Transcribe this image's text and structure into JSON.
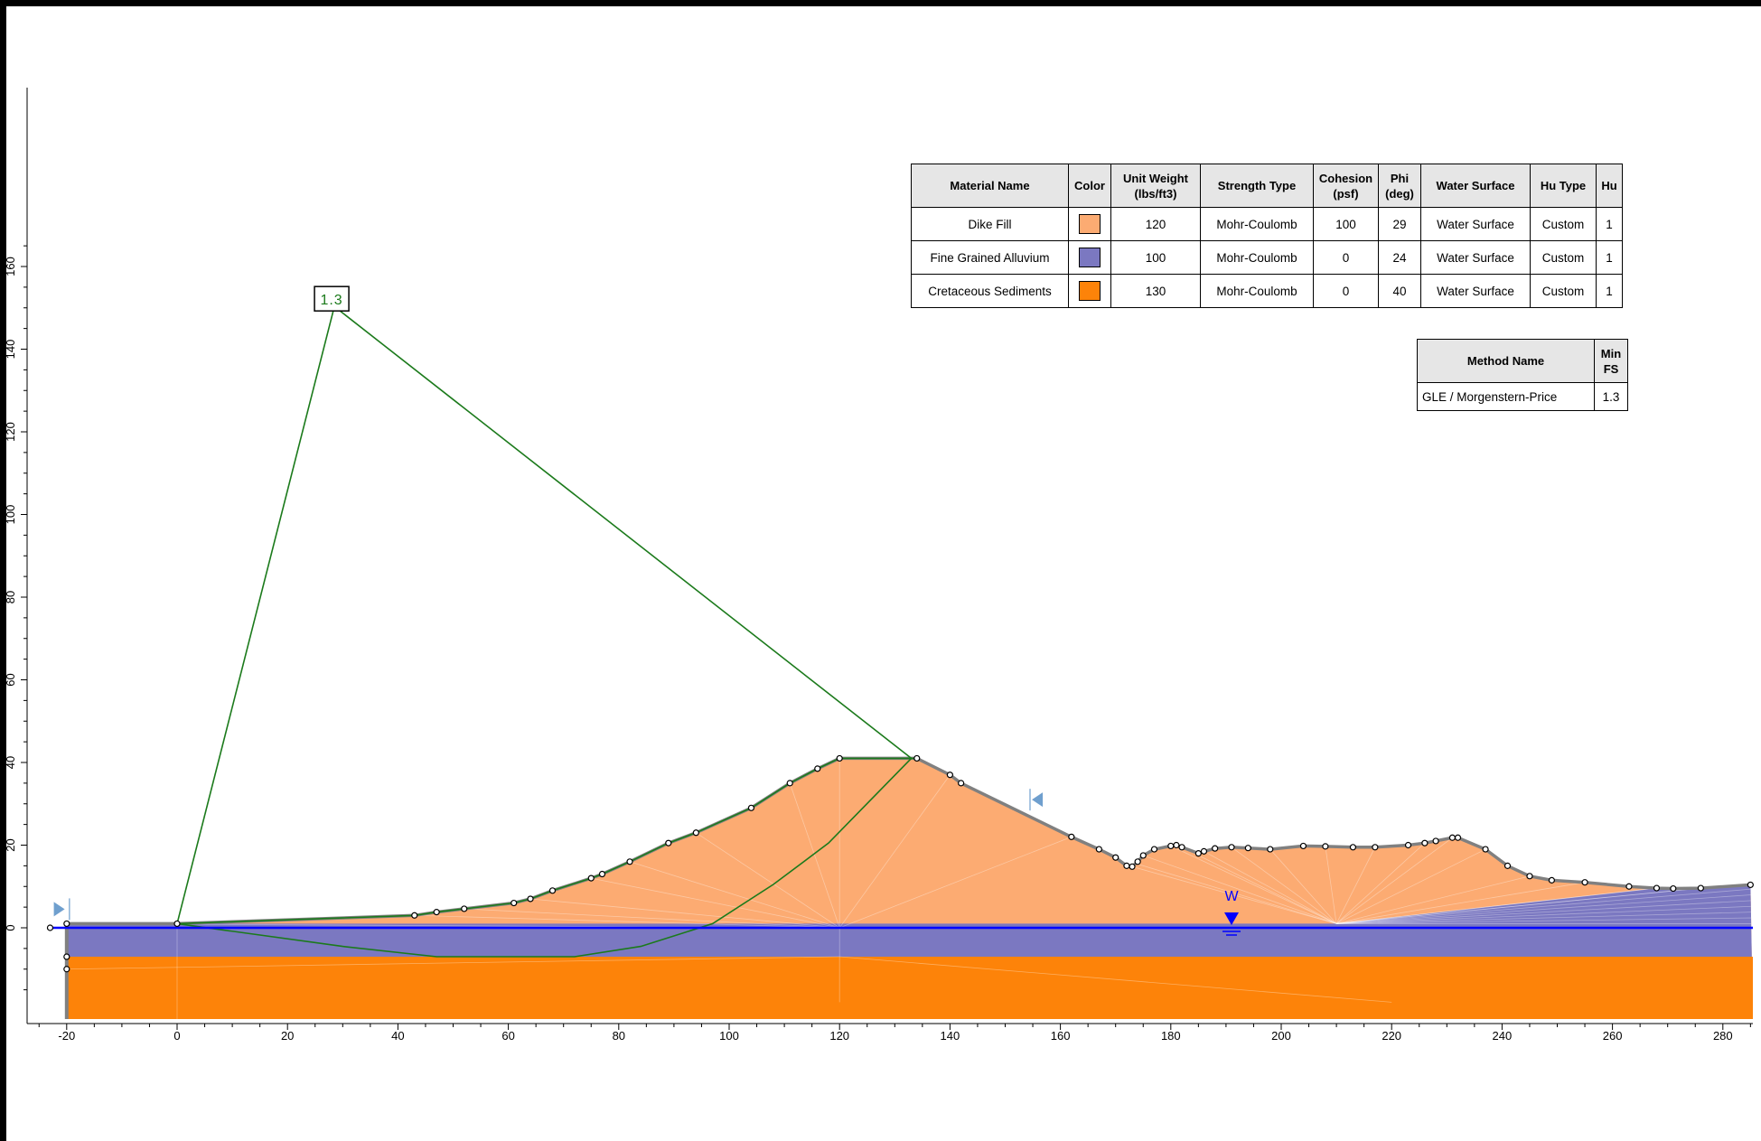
{
  "colors": {
    "dike_fill": "#fcab72",
    "fine_grained_alluvium": "#7b78c1",
    "cretaceous_sediments": "#fd8309",
    "slip_surface": "#1b7a1b",
    "water_table": "#0000ff",
    "ground_line": "#808080"
  },
  "chart_data": {
    "type": "slope-stability-cross-section",
    "x_ticks": [
      "-20",
      "0",
      "20",
      "40",
      "60",
      "80",
      "100",
      "120",
      "140",
      "160",
      "180",
      "200",
      "220",
      "240",
      "260",
      "280"
    ],
    "y_ticks": [
      "0",
      "20",
      "40",
      "60",
      "80",
      "100",
      "120",
      "140",
      "160"
    ],
    "xlim": [
      -25,
      285
    ],
    "ylim": [
      -18,
      165
    ],
    "ground_surface": [
      [
        -20,
        1
      ],
      [
        0,
        1
      ],
      [
        43,
        3
      ],
      [
        47,
        3.8
      ],
      [
        52,
        4.6
      ],
      [
        61,
        6
      ],
      [
        64,
        7
      ],
      [
        68,
        9
      ],
      [
        75,
        12
      ],
      [
        77,
        13
      ],
      [
        82,
        16
      ],
      [
        89,
        20.5
      ],
      [
        94,
        23
      ],
      [
        104,
        29
      ],
      [
        111,
        35
      ],
      [
        116,
        38.5
      ],
      [
        120,
        41
      ],
      [
        134,
        41
      ],
      [
        140,
        37
      ],
      [
        142,
        35
      ],
      [
        162,
        22
      ],
      [
        167,
        19
      ],
      [
        170,
        17
      ],
      [
        172,
        15
      ],
      [
        173,
        14.8
      ],
      [
        174,
        16
      ],
      [
        175,
        17.5
      ],
      [
        177,
        19
      ],
      [
        180,
        19.8
      ],
      [
        181,
        20
      ],
      [
        182,
        19.5
      ],
      [
        185,
        18
      ],
      [
        186,
        18.5
      ],
      [
        188,
        19.2
      ],
      [
        191,
        19.5
      ],
      [
        194,
        19.3
      ],
      [
        198,
        19
      ],
      [
        204,
        19.8
      ],
      [
        208,
        19.7
      ],
      [
        213,
        19.5
      ],
      [
        217,
        19.5
      ],
      [
        223,
        20
      ],
      [
        226,
        20.5
      ],
      [
        228,
        21
      ],
      [
        231,
        21.8
      ],
      [
        232,
        21.8
      ],
      [
        237,
        19
      ],
      [
        241,
        15
      ],
      [
        245,
        12.5
      ],
      [
        249,
        11.5
      ],
      [
        255,
        11
      ],
      [
        263,
        10
      ],
      [
        268,
        9.6
      ],
      [
        271,
        9.5
      ],
      [
        276,
        9.6
      ],
      [
        285,
        10.4
      ]
    ],
    "alluvium_bottom": -7,
    "section_bottom": -18,
    "water_table_y": 0,
    "slip_surface": [
      [
        0,
        1
      ],
      [
        30,
        -4.5
      ],
      [
        47,
        -7
      ],
      [
        72,
        -7
      ],
      [
        84,
        -4.5
      ],
      [
        97,
        1
      ],
      [
        108,
        10.5
      ],
      [
        118,
        20.5
      ],
      [
        133,
        41
      ]
    ],
    "slip_center": [
      28,
      151
    ],
    "slip_center_label": "1.3",
    "water_label": "W",
    "water_label_x": 191
  },
  "materials_table": {
    "headers": {
      "name": "Material Name",
      "color": "Color",
      "unit_weight_1": "Unit Weight",
      "unit_weight_2": "(lbs/ft3)",
      "strength": "Strength Type",
      "cohesion_1": "Cohesion",
      "cohesion_2": "(psf)",
      "phi_1": "Phi",
      "phi_2": "(deg)",
      "water": "Water Surface",
      "hu_type": "Hu Type",
      "hu": "Hu"
    },
    "rows": [
      {
        "name": "Dike Fill",
        "color": "#fcab72",
        "unit_weight": "120",
        "strength": "Mohr-Coulomb",
        "cohesion": "100",
        "phi": "29",
        "water": "Water Surface",
        "hu_type": "Custom",
        "hu": "1"
      },
      {
        "name": "Fine Grained Alluvium",
        "color": "#7b78c1",
        "unit_weight": "100",
        "strength": "Mohr-Coulomb",
        "cohesion": "0",
        "phi": "24",
        "water": "Water Surface",
        "hu_type": "Custom",
        "hu": "1"
      },
      {
        "name": "Cretaceous Sediments",
        "color": "#fd8309",
        "unit_weight": "130",
        "strength": "Mohr-Coulomb",
        "cohesion": "0",
        "phi": "40",
        "water": "Water Surface",
        "hu_type": "Custom",
        "hu": "1"
      }
    ]
  },
  "method_table": {
    "headers": {
      "method": "Method Name",
      "min_fs_1": "Min",
      "min_fs_2": "FS"
    },
    "rows": [
      {
        "method": "GLE / Morgenstern-Price",
        "min_fs": "1.3"
      }
    ]
  }
}
